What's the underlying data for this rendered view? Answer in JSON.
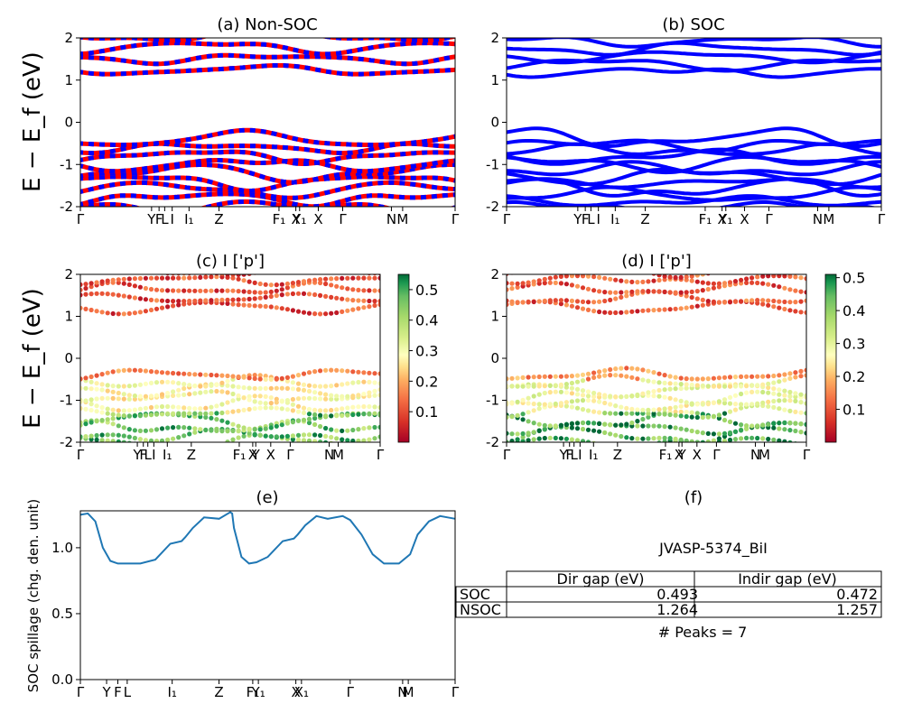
{
  "figure": {
    "ylabel_bands": "E − E_f (eV)",
    "ylabel_spillage": "SOC spillage (chg. den. unit)"
  },
  "kpath_labels": [
    "Γ",
    "Y|F|L|I|I₁",
    "Z",
    "F₁|X|Y₁|X",
    "Γ",
    "N|M",
    "Γ"
  ],
  "chart_data": [
    {
      "id": "a",
      "type": "line",
      "title": "(a) Non-SOC",
      "series": [
        {
          "color": "#ff0000"
        },
        {
          "color": "#0000ff"
        }
      ],
      "ylim": [
        -2,
        2
      ],
      "yticks": [
        -2,
        -1,
        0,
        1,
        2
      ],
      "xticks": [
        "Γ",
        "Y",
        "F",
        "L",
        "I",
        "I₁",
        "Z",
        "F₁",
        "X",
        "Y₁",
        "X",
        "Γ",
        "N",
        "M",
        "Γ"
      ],
      "grid": false
    },
    {
      "id": "b",
      "type": "line",
      "title": "(b) SOC",
      "series": [
        {
          "color": "#0000ff"
        }
      ],
      "ylim": [
        -2,
        2
      ],
      "yticks": [
        -2,
        -1,
        0,
        1,
        2
      ],
      "xticks": [
        "Γ",
        "Y",
        "F",
        "L",
        "I",
        "I₁",
        "Z",
        "F₁",
        "X",
        "Y₁",
        "X",
        "Γ",
        "N",
        "M",
        "Γ"
      ],
      "grid": false
    },
    {
      "id": "c",
      "type": "scatter",
      "title": "(c)  I ['p']",
      "ylim": [
        -2,
        2
      ],
      "yticks": [
        -2,
        -1,
        0,
        1,
        2
      ],
      "colorbar": {
        "colormap": "RdYlGn",
        "range": [
          0.0,
          0.55
        ],
        "ticks": [
          "0.1",
          "0.2",
          "0.3",
          "0.4",
          "0.5"
        ]
      },
      "xticks": [
        "Γ",
        "Y",
        "F",
        "L",
        "I",
        "I₁",
        "Z",
        "F₁",
        "X",
        "Y",
        "X",
        "Γ",
        "N",
        "M",
        "Γ"
      ]
    },
    {
      "id": "d",
      "type": "scatter",
      "title": "(d) I ['p']",
      "ylim": [
        -2,
        2
      ],
      "yticks": [
        -2,
        -1,
        0,
        1,
        2
      ],
      "colorbar": {
        "colormap": "RdYlGn",
        "range": [
          0.0,
          0.51
        ],
        "ticks": [
          "0.1",
          "0.2",
          "0.3",
          "0.4",
          "0.5"
        ]
      },
      "xticks": [
        "Γ",
        "Y",
        "F",
        "L",
        "I",
        "I₁",
        "Z",
        "F₁",
        "X",
        "Y",
        "X",
        "Γ",
        "N",
        "M",
        "Γ"
      ]
    },
    {
      "id": "e",
      "type": "line",
      "title": "(e)",
      "ylabel": "SOC spillage (chg. den. unit)",
      "ylim": [
        0,
        1.28
      ],
      "yticks": [
        "0.0",
        "0.5",
        "1.0"
      ],
      "xticks": [
        "Γ",
        "Y",
        "F",
        "L",
        "I₁",
        "Z",
        "F₁",
        "Y₁",
        "X",
        "X₁",
        "Γ",
        "N",
        "M",
        "Γ"
      ],
      "series": [
        {
          "color": "#1f77b4",
          "x": [
            0,
            0.02,
            0.04,
            0.06,
            0.08,
            0.1,
            0.12,
            0.16,
            0.2,
            0.24,
            0.27,
            0.28,
            0.3,
            0.33,
            0.37,
            0.4,
            0.405,
            0.41,
            0.43,
            0.45,
            0.47,
            0.5,
            0.54,
            0.57,
            0.58,
            0.6,
            0.63,
            0.66,
            0.7,
            0.72,
            0.75,
            0.78,
            0.81,
            0.85,
            0.88,
            0.9,
            0.93,
            0.96,
            0.98,
            1.0
          ],
          "values": [
            1.25,
            1.26,
            1.2,
            1.0,
            0.9,
            0.88,
            0.88,
            0.88,
            0.91,
            1.03,
            1.05,
            1.08,
            1.15,
            1.23,
            1.22,
            1.27,
            1.26,
            1.15,
            0.93,
            0.88,
            0.89,
            0.93,
            1.05,
            1.07,
            1.1,
            1.17,
            1.24,
            1.22,
            1.24,
            1.21,
            1.1,
            0.95,
            0.88,
            0.88,
            0.95,
            1.1,
            1.2,
            1.24,
            1.23,
            1.22
          ]
        }
      ]
    }
  ],
  "panel_f": {
    "title": "(f)",
    "name": "JVASP-5374_BiI",
    "columns": [
      "Dir gap (eV)",
      "Indir gap (eV)"
    ],
    "rows": [
      {
        "label": "SOC",
        "dir": "0.493",
        "indir": "0.472"
      },
      {
        "label": "NSOC",
        "dir": "1.264",
        "indir": "1.257"
      }
    ],
    "peaks": "# Peaks = 7"
  }
}
